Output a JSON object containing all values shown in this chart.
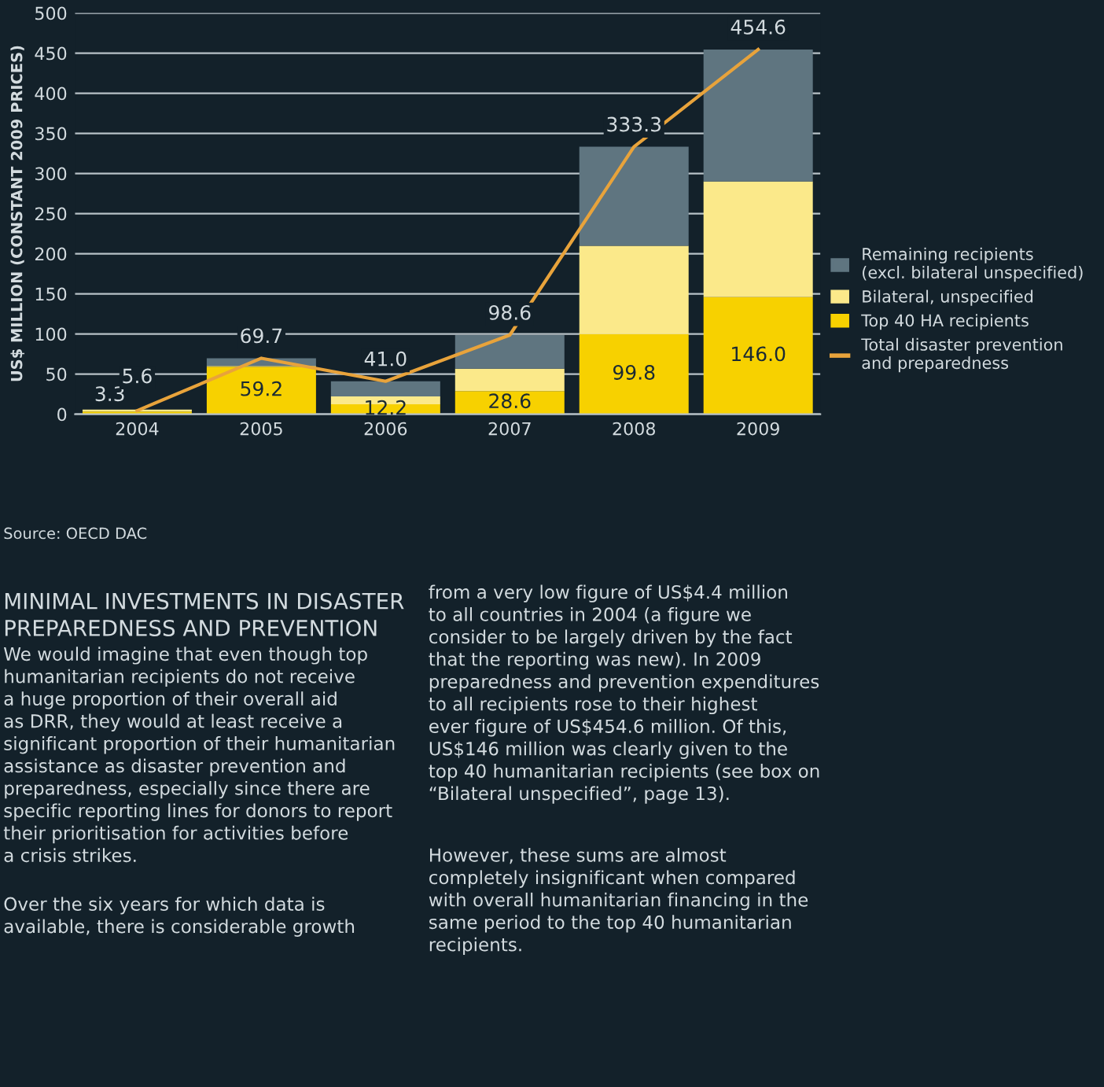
{
  "chart_data": {
    "type": "bar",
    "stacked": true,
    "ylabel": "US$ MILLION (CONSTANT 2009 PRICES)",
    "categories": [
      "2004",
      "2005",
      "2006",
      "2007",
      "2008",
      "2009"
    ],
    "series": [
      {
        "name": "Top 40 HA recipients",
        "color": "#f7d100",
        "values": [
          3.3,
          59.2,
          12.2,
          28.6,
          99.8,
          146.0
        ],
        "value_labels": [
          "3.3",
          "59.2",
          "12.2",
          "28.6",
          "99.8",
          "146.0"
        ]
      },
      {
        "name": "Bilateral, unspecified",
        "color": "#fbe98a",
        "values": [
          2.3,
          1,
          10,
          28,
          110,
          144
        ]
      },
      {
        "name": "Remaining recipients\n(excl. bilateral unspecified)",
        "color": "#5f7580",
        "values": [
          null,
          9.5,
          18.8,
          42.0,
          123.5,
          164.6
        ]
      },
      {
        "name": "Total disaster prevention\nand preparedness",
        "type": "line",
        "color": "#e8a33b",
        "values": [
          4.4,
          69.7,
          41.0,
          98.6,
          333.3,
          454.6
        ]
      }
    ],
    "totals": [
      "5.6",
      "69.7",
      "41.0",
      "98.6",
      "333.3",
      "454.6"
    ],
    "ylim": [
      0,
      500
    ],
    "yticks": [
      0,
      50,
      100,
      150,
      200,
      250,
      300,
      350,
      400,
      450,
      500
    ],
    "grid": "y",
    "legend": "right",
    "annotations": [
      "Source: OECD DAC",
      "MINIMAL INVESTMENTS IN DISASTER\nPREPAREDNESS AND PREVENTION",
      "We would imagine that even though top\nhumanitarian recipients do not receive\na huge proportion of their overall aid\nas DRR, they would at least receive a\nsignificant proportion of their humanitarian\nassistance as disaster prevention and\npreparedness, especially since there are\nspecific reporting lines for donors to report\ntheir prioritisation for activities before\na crisis strikes.",
      "Over the six years for which data is\navailable, there is considerable growth",
      "from a very low figure of US$4.4 million\nto all countries in 2004 (a figure we\nconsider to be largely driven by the fact\nthat the reporting was new). In 2009\npreparedness and prevention expenditures\nto all recipients rose to their highest\never figure of US$454.6 million. Of this,\nUS$146 million was clearly given to the\ntop 40 humanitarian recipients (see box on\n“Bilateral unspecified”, page 13).",
      "However, these sums are almost\ncompletely insignificant when compared\nwith overall humanitarian financing in the\nsame period to the top 40 humanitarian\nrecipients."
    ]
  }
}
